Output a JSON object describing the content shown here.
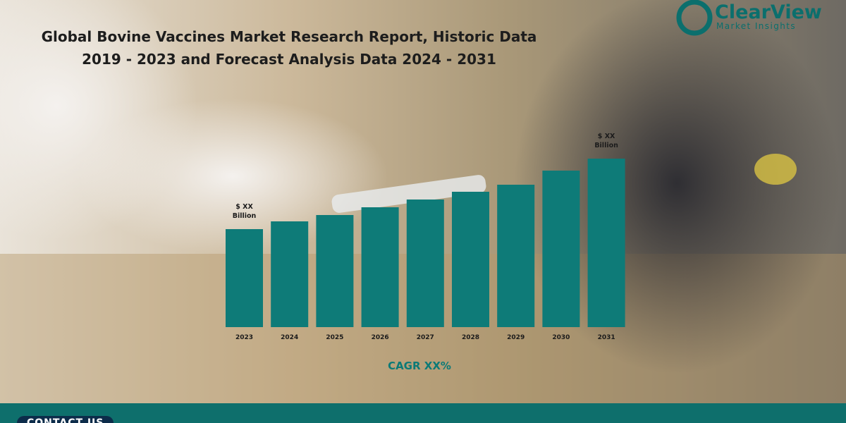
{
  "logo": {
    "name": "ClearView",
    "tagline": "Market Insights"
  },
  "chart_data": {
    "type": "bar",
    "title": "Global Bovine Vaccines Market Research Report, Historic Data\n2019 - 2023 and Forecast Analysis Data 2024 - 2031",
    "categories": [
      "2023",
      "2024",
      "2025",
      "2026",
      "2027",
      "2028",
      "2029",
      "2030",
      "2031"
    ],
    "values": [
      139,
      150,
      159,
      170,
      181,
      192,
      202,
      222,
      239
    ],
    "value_labels": [
      "$ XX\nBillion",
      null,
      null,
      null,
      null,
      null,
      null,
      null,
      "$ XX\nBillion"
    ],
    "color": "#0e7b78",
    "annotation": "CAGR XX%"
  },
  "footer": {
    "contact": "CONTACT US"
  }
}
